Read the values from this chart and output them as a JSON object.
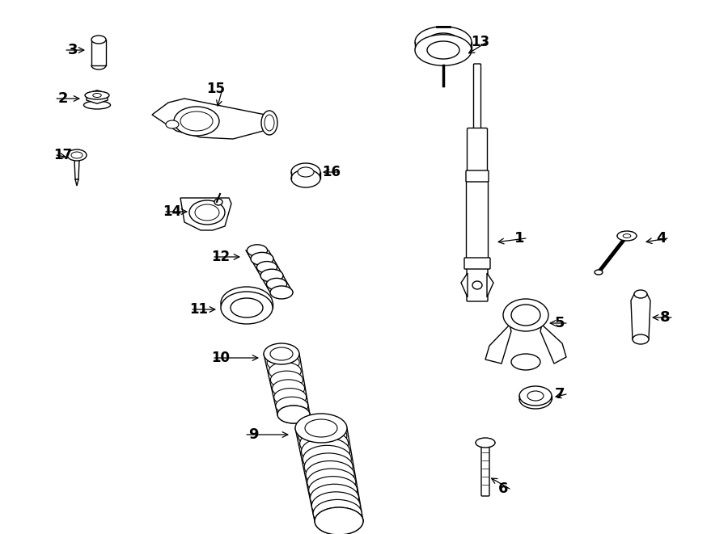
{
  "bg": "#ffffff",
  "lc": "#000000",
  "lw": 1.0,
  "fig_w": 9.0,
  "fig_h": 6.61,
  "dpi": 100
}
